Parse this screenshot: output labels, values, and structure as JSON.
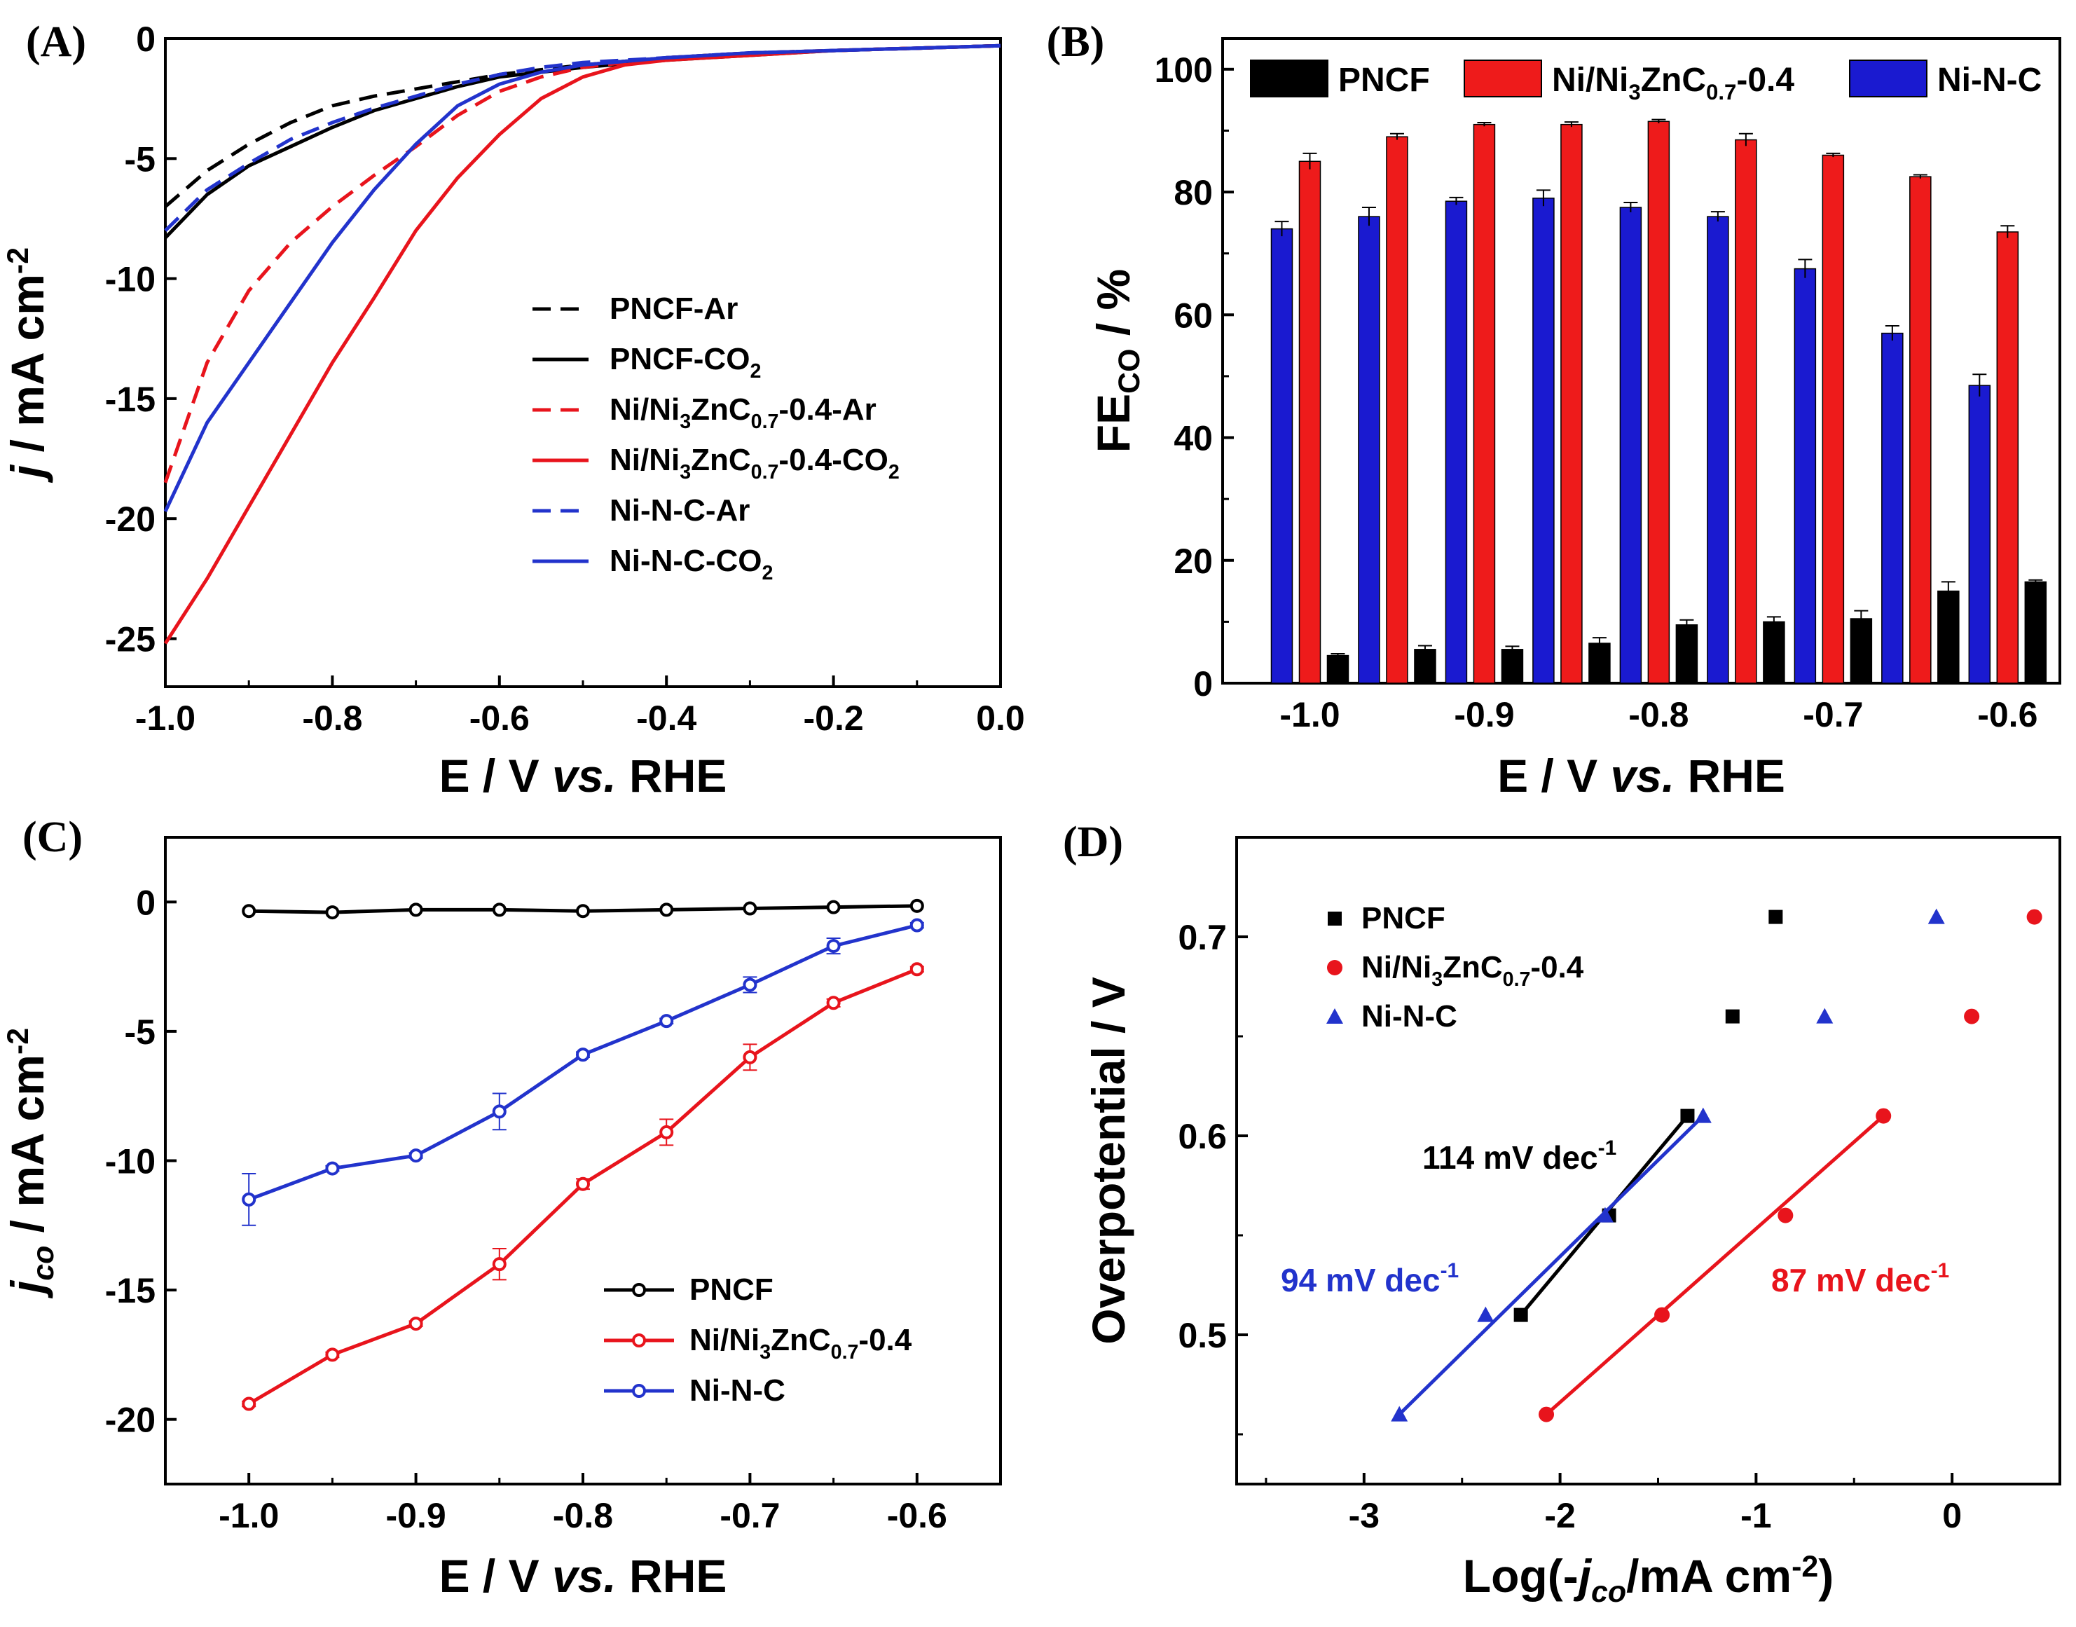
{
  "chart_data": [
    {
      "panel": "(A)",
      "type": "line",
      "xlabel": "E / V vs. RHE",
      "ylabel": "j / mA cm-2",
      "xlim": [
        -1.0,
        0.0
      ],
      "ylim": [
        -27,
        0
      ],
      "xticks": [
        "-1.0",
        "-0.8",
        "-0.6",
        "-0.4",
        "-0.2",
        "0.0"
      ],
      "yticks": [
        "0",
        "-5",
        "-10",
        "-15",
        "-20",
        "-25"
      ],
      "series": [
        {
          "name": "PNCF-Ar",
          "color": "#000000",
          "dash": true,
          "x": [
            -1.0,
            -0.95,
            -0.9,
            -0.85,
            -0.8,
            -0.75,
            -0.7,
            -0.65,
            -0.6,
            -0.55,
            -0.5,
            -0.4,
            -0.3,
            -0.2,
            -0.1,
            0.0
          ],
          "y": [
            -7.0,
            -5.5,
            -4.4,
            -3.5,
            -2.8,
            -2.4,
            -2.1,
            -1.8,
            -1.5,
            -1.3,
            -1.1,
            -0.8,
            -0.6,
            -0.5,
            -0.4,
            -0.3
          ]
        },
        {
          "name": "PNCF-CO2",
          "color": "#000000",
          "dash": false,
          "x": [
            -1.0,
            -0.95,
            -0.9,
            -0.85,
            -0.8,
            -0.75,
            -0.7,
            -0.65,
            -0.6,
            -0.55,
            -0.5,
            -0.4,
            -0.3,
            -0.2,
            -0.1,
            0.0
          ],
          "y": [
            -8.3,
            -6.5,
            -5.3,
            -4.5,
            -3.7,
            -3.0,
            -2.5,
            -2.0,
            -1.6,
            -1.4,
            -1.2,
            -0.9,
            -0.7,
            -0.5,
            -0.4,
            -0.3
          ]
        },
        {
          "name": "Ni/Ni3ZnC0.7-0.4-Ar",
          "color": "#e8141c",
          "dash": true,
          "x": [
            -1.0,
            -0.95,
            -0.9,
            -0.85,
            -0.8,
            -0.75,
            -0.7,
            -0.65,
            -0.6,
            -0.55,
            -0.5,
            -0.4,
            -0.3,
            -0.2,
            -0.1,
            0.0
          ],
          "y": [
            -18.5,
            -13.5,
            -10.5,
            -8.5,
            -7.0,
            -5.7,
            -4.5,
            -3.2,
            -2.2,
            -1.6,
            -1.2,
            -0.8,
            -0.6,
            -0.5,
            -0.4,
            -0.3
          ]
        },
        {
          "name": "Ni/Ni3ZnC0.7-0.4-CO2",
          "color": "#e8141c",
          "dash": false,
          "x": [
            -1.0,
            -0.95,
            -0.9,
            -0.85,
            -0.8,
            -0.75,
            -0.7,
            -0.65,
            -0.6,
            -0.55,
            -0.5,
            -0.45,
            -0.4,
            -0.3,
            -0.2,
            -0.1,
            0.0
          ],
          "y": [
            -25.2,
            -22.5,
            -19.5,
            -16.5,
            -13.5,
            -10.8,
            -8.0,
            -5.8,
            -4.0,
            -2.5,
            -1.6,
            -1.1,
            -0.9,
            -0.7,
            -0.5,
            -0.4,
            -0.3
          ]
        },
        {
          "name": "Ni-N-C-Ar",
          "color": "#2233cc",
          "dash": true,
          "x": [
            -1.0,
            -0.95,
            -0.9,
            -0.85,
            -0.8,
            -0.75,
            -0.7,
            -0.65,
            -0.6,
            -0.55,
            -0.5,
            -0.4,
            -0.3,
            -0.2,
            -0.1,
            0.0
          ],
          "y": [
            -8.0,
            -6.3,
            -5.2,
            -4.2,
            -3.5,
            -2.9,
            -2.4,
            -1.9,
            -1.5,
            -1.2,
            -1.0,
            -0.8,
            -0.6,
            -0.5,
            -0.4,
            -0.3
          ]
        },
        {
          "name": "Ni-N-C-CO2",
          "color": "#2233cc",
          "dash": false,
          "x": [
            -1.0,
            -0.95,
            -0.9,
            -0.85,
            -0.8,
            -0.75,
            -0.7,
            -0.65,
            -0.6,
            -0.55,
            -0.5,
            -0.4,
            -0.3,
            -0.2,
            -0.1,
            0.0
          ],
          "y": [
            -19.7,
            -16.0,
            -13.5,
            -11.0,
            -8.5,
            -6.3,
            -4.4,
            -2.8,
            -1.9,
            -1.4,
            -1.1,
            -0.8,
            -0.6,
            -0.5,
            -0.4,
            -0.3
          ]
        }
      ],
      "legend": [
        {
          "text": "PNCF-Ar"
        },
        {
          "text": "PNCF-CO",
          "sub": "2",
          "tail": ""
        },
        {
          "text": "Ni/Ni",
          "sub": "3",
          "tail": "ZnC",
          "sub2": "0.7",
          "tail2": "-0.4-Ar"
        },
        {
          "text": "Ni/Ni",
          "sub": "3",
          "tail": "ZnC",
          "sub2": "0.7",
          "tail2": "-0.4-CO",
          "sub3": "2"
        },
        {
          "text": "Ni-N-C-Ar"
        },
        {
          "text": "Ni-N-C-CO",
          "sub": "2",
          "tail": ""
        }
      ]
    },
    {
      "panel": "(B)",
      "type": "bar",
      "xlabel": "E / V vs. RHE",
      "ylabel": "FE CO / %",
      "ylim": [
        0,
        105
      ],
      "xlim": [
        -1.05,
        -0.57
      ],
      "xticks": [
        "-1.0",
        "-0.9",
        "-0.8",
        "-0.7",
        "-0.6"
      ],
      "yticks": [
        "0",
        "20",
        "40",
        "60",
        "80",
        "100"
      ],
      "categories": [
        -1.0,
        -0.95,
        -0.9,
        -0.85,
        -0.8,
        -0.75,
        -0.7,
        -0.65,
        -0.6
      ],
      "series": [
        {
          "name": "Ni-N-C",
          "color": "#1a1ad0",
          "values": [
            74,
            76,
            78.5,
            79,
            77.5,
            76,
            67.5,
            57,
            48.5
          ],
          "err": [
            1.2,
            1.5,
            0.6,
            1.3,
            0.8,
            0.8,
            1.5,
            1.2,
            1.8
          ]
        },
        {
          "name": "Ni/Ni3ZnC0.7-0.4",
          "color": "#ee1b1b",
          "values": [
            85,
            89,
            91,
            91,
            91.5,
            88.5,
            86,
            82.5,
            73.5
          ],
          "err": [
            1.3,
            0.5,
            0.3,
            0.4,
            0.3,
            1.0,
            0.3,
            0.3,
            1.0
          ]
        },
        {
          "name": "PNCF",
          "color": "#000000",
          "values": [
            4.5,
            5.5,
            5.5,
            6.5,
            9.5,
            10,
            10.5,
            15,
            16.5
          ],
          "err": [
            0.3,
            0.6,
            0.5,
            0.9,
            0.8,
            0.8,
            1.3,
            1.5,
            0.3
          ]
        }
      ],
      "legend": [
        {
          "text": "PNCF"
        },
        {
          "text": "Ni/Ni",
          "sub": "3",
          "tail": "ZnC",
          "sub2": "0.7",
          "tail2": "-0.4"
        },
        {
          "text": "Ni-N-C"
        }
      ]
    },
    {
      "panel": "(C)",
      "type": "line",
      "xlabel": "E / V vs. RHE",
      "ylabel": "j co / mA cm-2",
      "xlim": [
        -1.05,
        -0.55
      ],
      "ylim": [
        -22.5,
        2.5
      ],
      "xticks": [
        "-1.0",
        "-0.9",
        "-0.8",
        "-0.7",
        "-0.6"
      ],
      "yticks": [
        "0",
        "-5",
        "-10",
        "-15",
        "-20"
      ],
      "x": [
        -1.0,
        -0.95,
        -0.9,
        -0.85,
        -0.8,
        -0.75,
        -0.7,
        -0.65,
        -0.6
      ],
      "series": [
        {
          "name": "PNCF",
          "color": "#000000",
          "values": [
            -0.35,
            -0.4,
            -0.3,
            -0.3,
            -0.35,
            -0.3,
            -0.25,
            -0.2,
            -0.15
          ],
          "err": [
            0,
            0,
            0,
            0,
            0,
            0,
            0,
            0,
            0
          ]
        },
        {
          "name": "Ni/Ni3ZnC0.7-0.4",
          "color": "#e8141c",
          "values": [
            -19.4,
            -17.5,
            -16.3,
            -14.0,
            -10.9,
            -8.9,
            -6.0,
            -3.9,
            -2.6
          ],
          "err": [
            0.1,
            0.1,
            0.1,
            0.6,
            0.2,
            0.5,
            0.5,
            0.15,
            0.1
          ]
        },
        {
          "name": "Ni-N-C",
          "color": "#2233cc",
          "values": [
            -11.5,
            -10.3,
            -9.8,
            -8.1,
            -5.9,
            -4.6,
            -3.2,
            -1.7,
            -0.9
          ],
          "err": [
            1.0,
            0.1,
            0.1,
            0.7,
            0.1,
            0.1,
            0.3,
            0.3,
            0.1
          ]
        }
      ],
      "legend": [
        {
          "text": "PNCF"
        },
        {
          "text": "Ni/Ni",
          "sub": "3",
          "tail": "ZnC",
          "sub2": "0.7",
          "tail2": "-0.4"
        },
        {
          "text": "Ni-N-C"
        }
      ]
    },
    {
      "panel": "(D)",
      "type": "scatter",
      "xlabel": "Log(-j co /mA cm-2)",
      "ylabel": "Overpotential / V",
      "xlim": [
        -3.65,
        0.55
      ],
      "ylim": [
        0.425,
        0.75
      ],
      "xticks": [
        "-3",
        "-2",
        "-1",
        "0"
      ],
      "yticks": [
        "0.5",
        "0.6",
        "0.7"
      ],
      "series": [
        {
          "name": "PNCF",
          "marker": "square",
          "color": "#000000",
          "x": [
            -2.2,
            -1.75,
            -1.35,
            -1.12,
            -0.9
          ],
          "y": [
            0.51,
            0.56,
            0.61,
            0.66,
            0.71
          ],
          "fit": {
            "x": [
              -2.2,
              -1.35
            ],
            "y": [
              0.51,
              0.61
            ]
          },
          "slope_label": "114 mV dec-1"
        },
        {
          "name": "Ni/Ni3ZnC0.7-0.4",
          "marker": "circle",
          "color": "#e8141c",
          "x": [
            -2.07,
            -1.48,
            -0.85,
            -0.35,
            0.1,
            0.42
          ],
          "y": [
            0.46,
            0.51,
            0.56,
            0.61,
            0.66,
            0.71
          ],
          "fit": {
            "x": [
              -2.07,
              -0.35
            ],
            "y": [
              0.46,
              0.61
            ]
          },
          "slope_label": "87 mV dec-1"
        },
        {
          "name": "Ni-N-C",
          "marker": "triangle",
          "color": "#2233cc",
          "x": [
            -2.82,
            -2.38,
            -1.77,
            -1.27,
            -0.65,
            -0.08
          ],
          "y": [
            0.46,
            0.51,
            0.56,
            0.61,
            0.66,
            0.71
          ],
          "fit": {
            "x": [
              -2.82,
              -1.27
            ],
            "y": [
              0.46,
              0.61
            ]
          },
          "slope_label": "94 mV dec-1"
        }
      ],
      "legend": [
        {
          "text": "PNCF"
        },
        {
          "text": "Ni/Ni",
          "sub": "3",
          "tail": "ZnC",
          "sub2": "0.7",
          "tail2": "-0.4"
        },
        {
          "text": "Ni-N-C"
        }
      ]
    }
  ]
}
